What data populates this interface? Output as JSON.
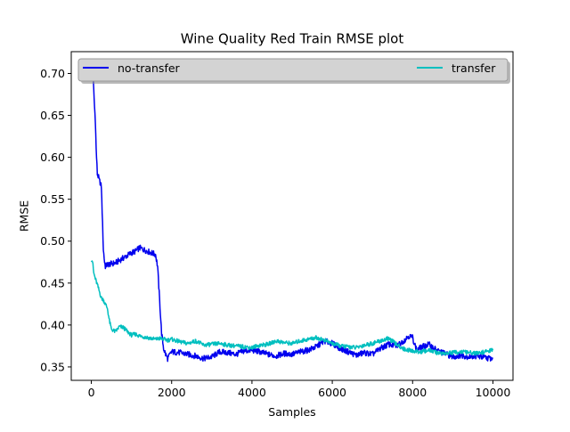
{
  "chart_data": {
    "type": "line",
    "title": "Wine Quality Red Train RMSE plot",
    "xlabel": "Samples",
    "ylabel": "RMSE",
    "xlim": [
      -500,
      10500
    ],
    "ylim": [
      0.334,
      0.726
    ],
    "xticks": [
      0,
      2000,
      4000,
      6000,
      8000,
      10000
    ],
    "xtick_labels": [
      "0",
      "2000",
      "4000",
      "6000",
      "8000",
      "10000"
    ],
    "yticks": [
      0.35,
      0.4,
      0.45,
      0.5,
      0.55,
      0.6,
      0.65,
      0.7
    ],
    "ytick_labels": [
      "0.35",
      "0.40",
      "0.45",
      "0.50",
      "0.55",
      "0.60",
      "0.65",
      "0.70"
    ],
    "grid": false,
    "legend": {
      "placement": "top",
      "background": "#d3d3d3"
    },
    "series": [
      {
        "name": "no-transfer",
        "color": "#0000ee",
        "x": [
          0,
          30,
          60,
          80,
          100,
          120,
          150,
          180,
          200,
          220,
          250,
          280,
          300,
          330,
          350,
          400,
          500,
          600,
          700,
          800,
          900,
          1000,
          1100,
          1200,
          1300,
          1400,
          1500,
          1600,
          1650,
          1700,
          1750,
          1800,
          1850,
          1900,
          2000,
          2200,
          2400,
          2600,
          2800,
          3000,
          3200,
          3400,
          3600,
          3800,
          4000,
          4200,
          4400,
          4600,
          4800,
          5000,
          5200,
          5400,
          5600,
          5800,
          6000,
          6200,
          6400,
          6600,
          6800,
          7000,
          7200,
          7400,
          7600,
          7800,
          7900,
          8000,
          8100,
          8200,
          8400,
          8600,
          8800,
          9000,
          9200,
          9400,
          9600,
          9800,
          10000
        ],
        "values": [
          0.695,
          0.71,
          0.68,
          0.66,
          0.645,
          0.61,
          0.58,
          0.576,
          0.572,
          0.57,
          0.565,
          0.52,
          0.49,
          0.475,
          0.47,
          0.472,
          0.473,
          0.474,
          0.477,
          0.48,
          0.483,
          0.486,
          0.488,
          0.492,
          0.49,
          0.488,
          0.486,
          0.484,
          0.47,
          0.43,
          0.39,
          0.372,
          0.365,
          0.36,
          0.368,
          0.367,
          0.365,
          0.363,
          0.36,
          0.362,
          0.368,
          0.367,
          0.365,
          0.369,
          0.37,
          0.368,
          0.365,
          0.363,
          0.366,
          0.365,
          0.368,
          0.37,
          0.374,
          0.381,
          0.378,
          0.372,
          0.368,
          0.364,
          0.367,
          0.365,
          0.372,
          0.377,
          0.375,
          0.382,
          0.387,
          0.385,
          0.37,
          0.373,
          0.377,
          0.37,
          0.366,
          0.362,
          0.364,
          0.362,
          0.363,
          0.361,
          0.36
        ]
      },
      {
        "name": "transfer",
        "color": "#00bfbf",
        "x": [
          0,
          30,
          60,
          100,
          150,
          200,
          250,
          300,
          350,
          400,
          450,
          500,
          600,
          700,
          800,
          900,
          1000,
          1100,
          1200,
          1300,
          1400,
          1500,
          1600,
          1700,
          1800,
          1900,
          2000,
          2200,
          2400,
          2600,
          2800,
          3000,
          3200,
          3400,
          3600,
          3800,
          4000,
          4200,
          4400,
          4600,
          4800,
          5000,
          5200,
          5400,
          5600,
          5800,
          6000,
          6200,
          6400,
          6600,
          6800,
          7000,
          7200,
          7400,
          7600,
          7800,
          8000,
          8200,
          8400,
          8600,
          8800,
          9000,
          9200,
          9400,
          9600,
          9800,
          10000
        ],
        "values": [
          0.479,
          0.476,
          0.462,
          0.455,
          0.448,
          0.44,
          0.432,
          0.43,
          0.425,
          0.42,
          0.405,
          0.395,
          0.392,
          0.398,
          0.397,
          0.392,
          0.388,
          0.389,
          0.387,
          0.386,
          0.385,
          0.384,
          0.383,
          0.384,
          0.383,
          0.382,
          0.383,
          0.38,
          0.378,
          0.381,
          0.376,
          0.377,
          0.378,
          0.376,
          0.375,
          0.374,
          0.373,
          0.376,
          0.377,
          0.381,
          0.379,
          0.378,
          0.381,
          0.383,
          0.385,
          0.382,
          0.378,
          0.375,
          0.374,
          0.373,
          0.376,
          0.378,
          0.381,
          0.384,
          0.377,
          0.371,
          0.369,
          0.368,
          0.37,
          0.367,
          0.366,
          0.367,
          0.368,
          0.367,
          0.366,
          0.368,
          0.37
        ]
      }
    ]
  }
}
